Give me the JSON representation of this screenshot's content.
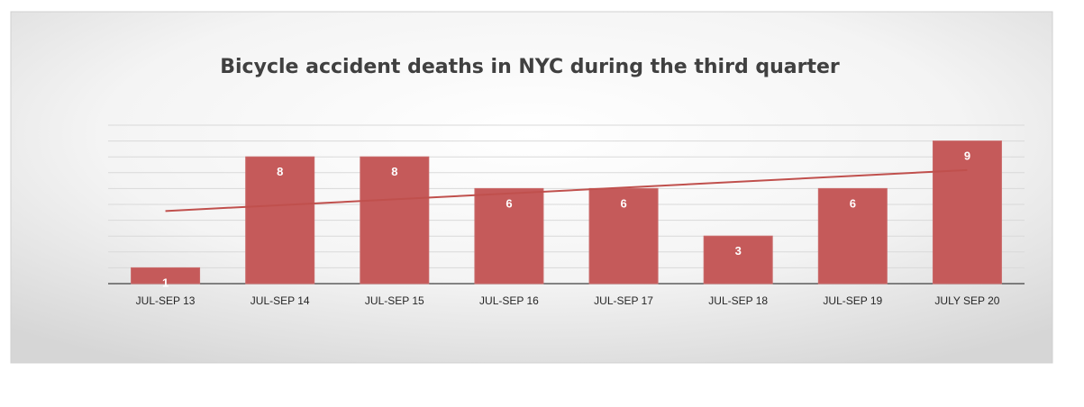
{
  "chart_data": {
    "type": "bar",
    "title": "Bicycle accident deaths in NYC during the  third quarter",
    "categories": [
      "JUL-SEP 13",
      "JUL-SEP 14",
      "JUL-SEP 15",
      "JUL-SEP 16",
      "JUL-SEP 17",
      "JUL-SEP 18",
      "JUL-SEP 19",
      "JULY SEP 20"
    ],
    "values": [
      1,
      8,
      8,
      6,
      6,
      3,
      6,
      9
    ],
    "ylim": [
      0,
      10
    ],
    "grid": true,
    "trendline": "linear",
    "xlabel": "",
    "ylabel": "",
    "colors": {
      "bar": "#c55a5a",
      "bar_border": "#c96a6a",
      "trendline": "#c0504d",
      "data_label": "#ffffff",
      "title": "#404040",
      "tick_label": "#262626",
      "grid": "#d9d9d9",
      "axis": "#404040"
    }
  }
}
